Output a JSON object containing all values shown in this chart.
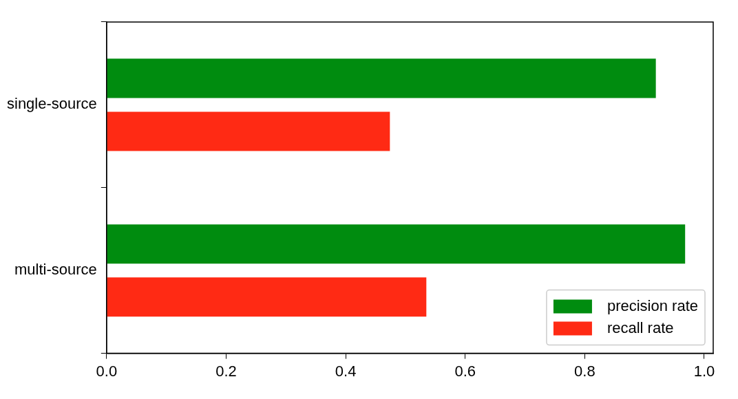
{
  "chart_data": {
    "type": "bar",
    "orientation": "horizontal",
    "categories": [
      "single-source",
      "multi-source"
    ],
    "series": [
      {
        "name": "precision rate",
        "color": "#008c0f",
        "values": [
          0.919,
          0.968
        ]
      },
      {
        "name": "recall rate",
        "color": "#ff2a14",
        "values": [
          0.474,
          0.535
        ]
      }
    ],
    "xlim": [
      0,
      1.015
    ],
    "xticks": [
      {
        "value": 0,
        "label": "0.0"
      },
      {
        "value": 0.2,
        "label": "0.2"
      },
      {
        "value": 0.4,
        "label": "0.4"
      },
      {
        "value": 0.6,
        "label": "0.6"
      },
      {
        "value": 0.8,
        "label": "0.8"
      },
      {
        "value": 1,
        "label": "1.0"
      }
    ],
    "grid": false,
    "legend": "bottom right"
  }
}
